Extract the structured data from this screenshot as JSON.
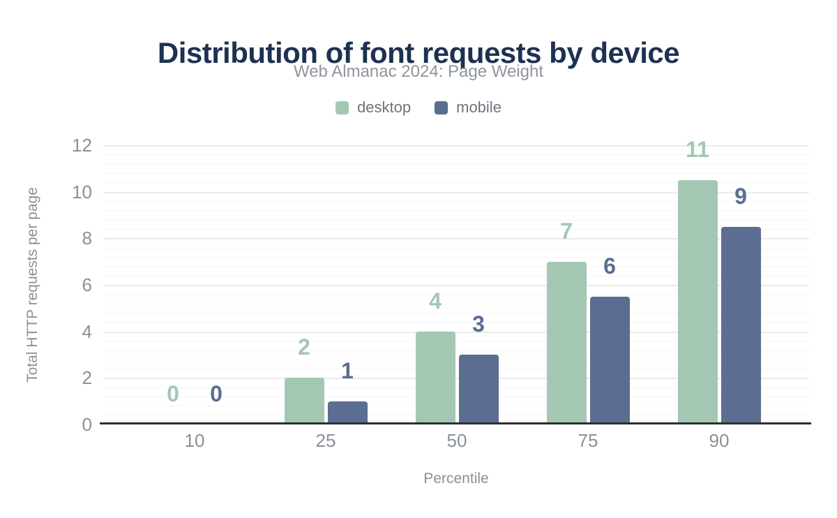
{
  "header": {
    "title": "Distribution of font requests by device",
    "subtitle": "Web Almanac 2024: Page Weight"
  },
  "chart_data": {
    "type": "bar",
    "title": "Distribution of font requests by device",
    "subtitle": "Web Almanac 2024: Page Weight",
    "categories": [
      "10",
      "25",
      "50",
      "75",
      "90"
    ],
    "series": [
      {
        "name": "desktop",
        "color": "#a3c7b3",
        "values": [
          0,
          2,
          4,
          7,
          10.5
        ],
        "labels": [
          "0",
          "2",
          "4",
          "7",
          "11"
        ]
      },
      {
        "name": "mobile",
        "color": "#5b6d90",
        "values": [
          0,
          1,
          3,
          5.5,
          8.5
        ],
        "labels": [
          "0",
          "1",
          "3",
          "6",
          "9"
        ]
      }
    ],
    "xlabel": "Percentile",
    "ylabel": "Total HTTP requests per page",
    "ylim": [
      0,
      12
    ],
    "yticks": [
      0,
      2,
      4,
      6,
      8,
      10,
      12
    ],
    "minor_gridline_step": 0.4,
    "grid": "horizontal",
    "legend_position": "top"
  },
  "colors": {
    "title": "#1e3151",
    "subtitle": "#8f959d",
    "tick_text": "#8a9099",
    "legend_text": "#6e747e",
    "axis_line": "#2f2f2f",
    "gridline_major": "#eaeaea",
    "gridline_minor": "#f5f5f5",
    "background": "#ffffff"
  }
}
